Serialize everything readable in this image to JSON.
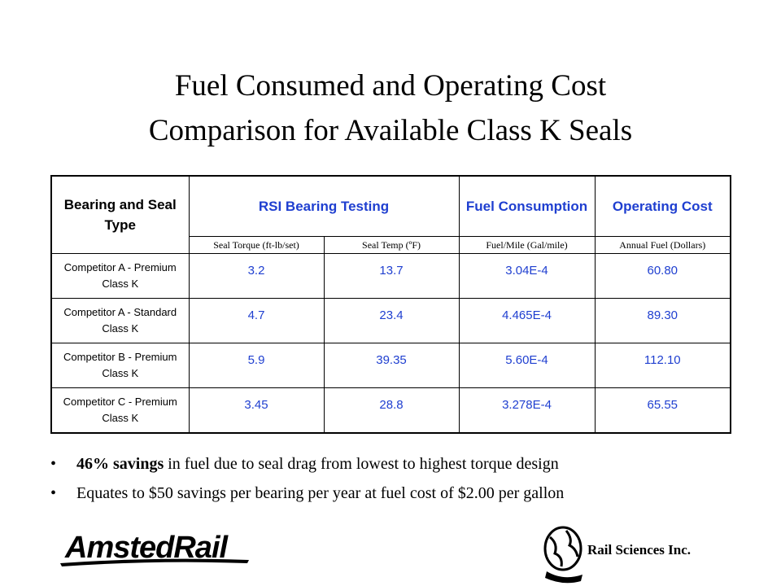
{
  "title": [
    "Fuel Consumed and Operating Cost",
    "Comparison for Available Class K Seals"
  ],
  "table": {
    "header": [
      "Bearing and Seal Type",
      "RSI Bearing Testing",
      "Fuel Consumption",
      "Operating Cost"
    ],
    "subheader": [
      "Seal Torque (ft-lb/set)",
      "Seal Temp (ºF)",
      "Fuel/Mile (Gal/mile)",
      "Annual Fuel (Dollars)"
    ],
    "rows": [
      [
        "Competitor A - Premium Class K",
        "3.2",
        "13.7",
        "3.04E-4",
        "60.80"
      ],
      [
        "Competitor A - Standard Class K",
        "4.7",
        "23.4",
        "4.465E-4",
        "89.30"
      ],
      [
        "Competitor B - Premium Class K",
        "5.9",
        "39.35",
        "5.60E-4",
        "112.10"
      ],
      [
        "Competitor C - Premium Class K",
        "3.45",
        "28.8",
        "3.278E-4",
        "65.55"
      ]
    ]
  },
  "bullets": [
    {
      "bold": "46% savings",
      "text": "in fuel due to seal drag from lowest to highest torque design"
    },
    {
      "text": "Equates to $50 savings per bearing per year at fuel cost of $2.00 per gallon"
    }
  ],
  "footer": {
    "logo": "AmstedRail",
    "company": "Rail Sciences Inc."
  }
}
